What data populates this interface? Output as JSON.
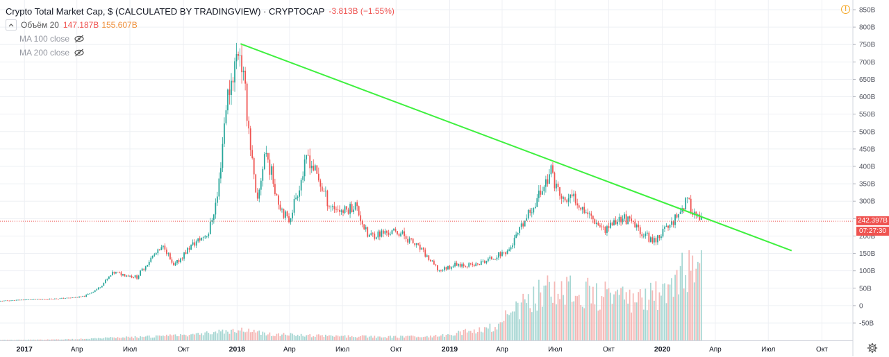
{
  "header": {
    "title": "Crypto Total Market Cap, $ (CALCULATED BY TRADINGVIEW) · CRYPTOCAP",
    "change": "-3.813B (−1.55%)",
    "collapse_icon": "chevron-up-icon",
    "volume_label": "Объём 20",
    "volume_value": "147.187B",
    "volume_ma_value": "155.607B",
    "ma100_label": "MA 100 close",
    "ma200_label": "MA 200 close",
    "hidden_icon": "eye-crossed-icon",
    "alert_icon": "warning-icon",
    "alert_text": "!"
  },
  "price_scale": {
    "current_price": "242.397B",
    "countdown": "07:27:30"
  },
  "colors": {
    "up": "#26a69a",
    "down": "#ef5350",
    "trendline": "#3ff03f",
    "vol_up": "#a7d7d3",
    "vol_down": "#f5b7b5",
    "grid": "#eef0f4",
    "price_line": "#ef5350"
  },
  "chart_data": {
    "type": "candlestick",
    "y_unit": "B USD",
    "ylim": [
      -75,
      870
    ],
    "y_ticks": [
      {
        "v": 850,
        "label": "850B"
      },
      {
        "v": 800,
        "label": "800B"
      },
      {
        "v": 750,
        "label": "750B"
      },
      {
        "v": 700,
        "label": "700B"
      },
      {
        "v": 650,
        "label": "650B"
      },
      {
        "v": 600,
        "label": "600B"
      },
      {
        "v": 550,
        "label": "550B"
      },
      {
        "v": 500,
        "label": "500B"
      },
      {
        "v": 450,
        "label": "450B"
      },
      {
        "v": 400,
        "label": "400B"
      },
      {
        "v": 350,
        "label": "350B"
      },
      {
        "v": 300,
        "label": "300B"
      },
      {
        "v": 250,
        "label": "250B"
      },
      {
        "v": 200,
        "label": "200B"
      },
      {
        "v": 150,
        "label": "150B"
      },
      {
        "v": 100,
        "label": "100B"
      },
      {
        "v": 50,
        "label": "50B"
      },
      {
        "v": 0,
        "label": "0"
      },
      {
        "v": -50,
        "label": "-50B"
      }
    ],
    "x_range": [
      "2016-11-20",
      "2020-11-22"
    ],
    "x_ticks": [
      {
        "date": "2017-01-01",
        "label": "2017",
        "bold": true
      },
      {
        "date": "2017-04-01",
        "label": "Апр",
        "bold": false
      },
      {
        "date": "2017-07-01",
        "label": "Июл",
        "bold": false
      },
      {
        "date": "2017-10-01",
        "label": "Окт",
        "bold": false
      },
      {
        "date": "2018-01-01",
        "label": "2018",
        "bold": true
      },
      {
        "date": "2018-04-01",
        "label": "Апр",
        "bold": false
      },
      {
        "date": "2018-07-01",
        "label": "Июл",
        "bold": false
      },
      {
        "date": "2018-10-01",
        "label": "Окт",
        "bold": false
      },
      {
        "date": "2019-01-01",
        "label": "2019",
        "bold": true
      },
      {
        "date": "2019-04-01",
        "label": "Апр",
        "bold": false
      },
      {
        "date": "2019-07-01",
        "label": "Июл",
        "bold": false
      },
      {
        "date": "2019-10-01",
        "label": "Окт",
        "bold": false
      },
      {
        "date": "2020-01-01",
        "label": "2020",
        "bold": true
      },
      {
        "date": "2020-04-01",
        "label": "Апр",
        "bold": false
      },
      {
        "date": "2020-07-01",
        "label": "Июл",
        "bold": false
      },
      {
        "date": "2020-10-01",
        "label": "Окт",
        "bold": false
      }
    ],
    "price_path": [
      [
        "2016-11-20",
        13
      ],
      [
        "2017-01-01",
        17
      ],
      [
        "2017-02-15",
        19
      ],
      [
        "2017-03-20",
        22
      ],
      [
        "2017-04-15",
        26
      ],
      [
        "2017-05-10",
        50
      ],
      [
        "2017-06-05",
        95
      ],
      [
        "2017-07-15",
        82
      ],
      [
        "2017-08-10",
        140
      ],
      [
        "2017-09-01",
        170
      ],
      [
        "2017-09-15",
        110
      ],
      [
        "2017-10-15",
        170
      ],
      [
        "2017-11-15",
        210
      ],
      [
        "2017-12-01",
        320
      ],
      [
        "2017-12-15",
        580
      ],
      [
        "2018-01-07",
        750
      ],
      [
        "2018-01-20",
        560
      ],
      [
        "2018-02-06",
        280
      ],
      [
        "2018-02-20",
        450
      ],
      [
        "2018-03-15",
        300
      ],
      [
        "2018-04-01",
        240
      ],
      [
        "2018-05-05",
        430
      ],
      [
        "2018-06-10",
        290
      ],
      [
        "2018-07-05",
        270
      ],
      [
        "2018-07-25",
        290
      ],
      [
        "2018-08-15",
        200
      ],
      [
        "2018-09-15",
        210
      ],
      [
        "2018-10-10",
        210
      ],
      [
        "2018-11-15",
        160
      ],
      [
        "2018-12-15",
        100
      ],
      [
        "2019-01-15",
        120
      ],
      [
        "2019-02-15",
        115
      ],
      [
        "2019-03-15",
        135
      ],
      [
        "2019-04-15",
        160
      ],
      [
        "2019-05-15",
        250
      ],
      [
        "2019-06-26",
        385
      ],
      [
        "2019-07-15",
        300
      ],
      [
        "2019-08-05",
        310
      ],
      [
        "2019-09-01",
        260
      ],
      [
        "2019-09-25",
        220
      ],
      [
        "2019-10-27",
        255
      ],
      [
        "2019-11-15",
        230
      ],
      [
        "2019-12-18",
        185
      ],
      [
        "2020-01-15",
        230
      ],
      [
        "2020-02-14",
        300
      ],
      [
        "2020-03-01",
        260
      ],
      [
        "2020-03-08",
        242
      ]
    ],
    "volume_path": [
      [
        "2016-11-20",
        0.5
      ],
      [
        "2017-03-01",
        1
      ],
      [
        "2017-06-01",
        3
      ],
      [
        "2017-09-01",
        5
      ],
      [
        "2017-11-15",
        9
      ],
      [
        "2018-01-07",
        12
      ],
      [
        "2018-03-01",
        7
      ],
      [
        "2018-06-01",
        5
      ],
      [
        "2018-10-01",
        4
      ],
      [
        "2018-12-15",
        5
      ],
      [
        "2019-03-15",
        15
      ],
      [
        "2019-05-15",
        45
      ],
      [
        "2019-06-26",
        65
      ],
      [
        "2019-08-15",
        55
      ],
      [
        "2019-11-15",
        45
      ],
      [
        "2020-01-01",
        55
      ],
      [
        "2020-02-14",
        85
      ],
      [
        "2020-03-08",
        100
      ]
    ],
    "trendline": [
      [
        "2018-01-07",
        752
      ],
      [
        "2020-08-10",
        158
      ]
    ],
    "last_price": 242.397
  }
}
